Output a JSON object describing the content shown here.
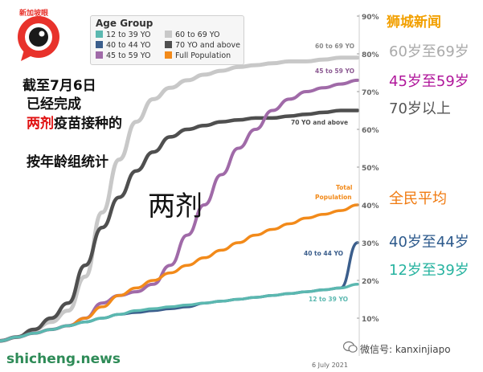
{
  "chart_data": {
    "type": "line",
    "title": "两剂",
    "legend_title": "Age Group",
    "legend_placement": "top-left",
    "ylim": [
      0,
      90
    ],
    "y_ticks": [
      "10%",
      "20%",
      "30%",
      "40%",
      "50%",
      "60%",
      "70%",
      "80%",
      "90%"
    ],
    "y_tick_values": [
      10,
      20,
      30,
      40,
      50,
      60,
      70,
      80,
      90
    ],
    "x_label": "6 July 2021",
    "grid": false,
    "series": [
      {
        "name": "12 to 39 YO",
        "color": "#5bb8b0",
        "values": [
          4,
          5,
          6,
          7,
          8,
          9,
          10,
          11,
          12,
          12.5,
          13,
          13.5,
          14,
          14.5,
          15,
          15.5,
          16,
          16.5,
          17,
          17.5,
          18,
          19
        ]
      },
      {
        "name": "40 to 44 YO",
        "color": "#3b5e8c",
        "values": [
          4,
          5,
          6,
          7,
          8,
          9,
          10,
          11,
          11.5,
          12,
          12.5,
          13,
          14,
          14.5,
          15,
          15.5,
          16,
          16.5,
          17,
          17.5,
          18,
          30
        ]
      },
      {
        "name": "45 to 59 YO",
        "color": "#a06aa8",
        "values": [
          4,
          5,
          6,
          7,
          8,
          10,
          14,
          16,
          17,
          19,
          24,
          32,
          40,
          48,
          55,
          60,
          65,
          68,
          70,
          71,
          72,
          73
        ]
      },
      {
        "name": "60 to 69 YO",
        "color": "#c8c8c8",
        "values": [
          4,
          5,
          7,
          9,
          12,
          21,
          38,
          52,
          62,
          68,
          71,
          73,
          74.5,
          75.5,
          76.5,
          77,
          77.5,
          78,
          78,
          78.5,
          79,
          79
        ]
      },
      {
        "name": "70 YO and above",
        "color": "#4f4f4f",
        "values": [
          4,
          5,
          7,
          10,
          14,
          24,
          34,
          42,
          49,
          54,
          58,
          60,
          61,
          62,
          62.5,
          63,
          63,
          63.5,
          64,
          64.5,
          65,
          65
        ]
      },
      {
        "name": "Full Population",
        "color": "#f28a1a",
        "values": [
          4,
          5,
          6,
          7,
          8,
          10,
          13,
          16,
          18,
          20,
          22,
          24,
          26,
          28,
          30,
          32,
          33.5,
          35,
          36.5,
          37.5,
          38.5,
          40
        ]
      }
    ],
    "series_labels": [
      {
        "text": "60 to 69 YO",
        "series": "60 to 69 YO"
      },
      {
        "text": "45 to 59 YO",
        "series": "45 to 59 YO"
      },
      {
        "text": "70 YO and above",
        "series": "70 YO and above"
      },
      {
        "text": "Total",
        "series": "Full Population"
      },
      {
        "text": "Population",
        "series": "Full Population"
      },
      {
        "text": "40 to 44 YO",
        "series": "40 to 44 YO"
      },
      {
        "text": "12 to 39 YO",
        "series": "12 to 39 YO"
      }
    ]
  },
  "overlay": {
    "heading_line1": "截至7月6日",
    "heading_line2": "已经完成",
    "heading_line3_red": "两剂",
    "heading_line3_rest": "疫苗接种的",
    "heading_line4": "按年龄组统计",
    "brand_top": "狮城新闻",
    "right_labels": [
      {
        "text": "60岁至69岁",
        "color": "#aaaaaa"
      },
      {
        "text": "45岁至59岁",
        "color": "#b0179b"
      },
      {
        "text": "70岁以上",
        "color": "#555555"
      },
      {
        "text": "全民平均",
        "color": "#f07a10"
      },
      {
        "text": "40岁至44岁",
        "color": "#2d5a8c"
      },
      {
        "text": "12岁至39岁",
        "color": "#27b3a0"
      }
    ],
    "logo_text": "新加坡眼",
    "watermark_bottom": "shicheng.news",
    "watermark_wechat": "微信号: kanxinjiapo"
  }
}
